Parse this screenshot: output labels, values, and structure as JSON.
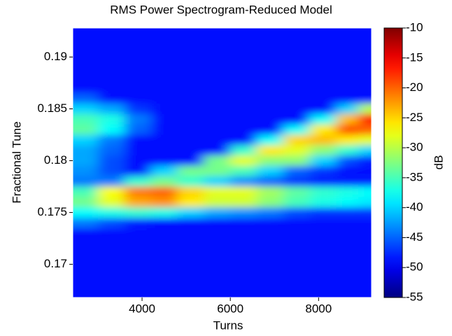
{
  "chart_data": {
    "type": "heatmap",
    "title": "RMS Power Spectrogram-Reduced Model",
    "x_label": "Turns",
    "y_label": "Fractional Tune",
    "colorbar_label": "dB",
    "colormap": "jet",
    "x": [
      2700,
      3300,
      3900,
      4500,
      5100,
      5700,
      6300,
      6900,
      7500,
      8100,
      8700,
      9100
    ],
    "y": [
      0.192,
      0.191,
      0.19,
      0.189,
      0.188,
      0.187,
      0.186,
      0.185,
      0.184,
      0.183,
      0.182,
      0.181,
      0.18,
      0.179,
      0.178,
      0.177,
      0.176,
      0.175,
      0.174,
      0.173,
      0.172,
      0.171,
      0.17,
      0.169,
      0.168
    ],
    "z": [
      [
        -49,
        -49,
        -49,
        -49,
        -49,
        -49,
        -49,
        -49,
        -49,
        -49,
        -49,
        -49
      ],
      [
        -49,
        -49,
        -49,
        -49,
        -49,
        -49,
        -49,
        -49,
        -49,
        -49,
        -49,
        -49
      ],
      [
        -49,
        -49,
        -49,
        -49,
        -49,
        -49,
        -49,
        -49,
        -49,
        -49,
        -49,
        -49
      ],
      [
        -49,
        -49,
        -49,
        -49,
        -49,
        -49,
        -49,
        -49,
        -49,
        -49,
        -49,
        -49
      ],
      [
        -49,
        -49,
        -49,
        -49,
        -49,
        -49,
        -49,
        -49,
        -49,
        -49,
        -49,
        -49
      ],
      [
        -49,
        -49,
        -49,
        -49,
        -49,
        -49,
        -49,
        -49,
        -49,
        -49,
        -49,
        -49
      ],
      [
        -45,
        -49,
        -49,
        -49,
        -49,
        -49,
        -49,
        -49,
        -49,
        -49,
        -49,
        -49
      ],
      [
        -40,
        -42,
        -47,
        -49,
        -49,
        -49,
        -49,
        -49,
        -49,
        -49,
        -40,
        -30
      ],
      [
        -35,
        -37,
        -44,
        -49,
        -49,
        -49,
        -49,
        -49,
        -49,
        -38,
        -24,
        -16
      ],
      [
        -34,
        -38,
        -45,
        -49,
        -49,
        -49,
        -49,
        -49,
        -38,
        -26,
        -19,
        -20
      ],
      [
        -40,
        -44,
        -49,
        -49,
        -49,
        -49,
        -49,
        -38,
        -25,
        -24,
        -26,
        -28
      ],
      [
        -42,
        -45,
        -49,
        -49,
        -49,
        -49,
        -36,
        -26,
        -28,
        -32,
        -36,
        -40
      ],
      [
        -42,
        -46,
        -49,
        -49,
        -49,
        -33,
        -28,
        -32,
        -32,
        -40,
        -46,
        -48
      ],
      [
        -43,
        -46,
        -49,
        -40,
        -33,
        -33,
        -35,
        -40,
        -45,
        -47,
        -49,
        -49
      ],
      [
        -44,
        -44,
        -36,
        -33,
        -36,
        -40,
        -43,
        -45,
        -47,
        -48,
        -48,
        -48
      ],
      [
        -35,
        -27,
        -21,
        -20,
        -25,
        -28,
        -28,
        -31,
        -34,
        -36,
        -37,
        -38
      ],
      [
        -33,
        -28,
        -23,
        -22,
        -26,
        -29,
        -29,
        -32,
        -35,
        -37,
        -38,
        -39
      ],
      [
        -38,
        -37,
        -36,
        -37,
        -40,
        -42,
        -43,
        -44,
        -46,
        -47,
        -47,
        -47
      ],
      [
        -44,
        -46,
        -48,
        -49,
        -49,
        -49,
        -49,
        -49,
        -49,
        -49,
        -49,
        -49
      ],
      [
        -49,
        -49,
        -49,
        -49,
        -49,
        -49,
        -49,
        -49,
        -49,
        -49,
        -49,
        -49
      ],
      [
        -49,
        -49,
        -49,
        -49,
        -49,
        -49,
        -49,
        -49,
        -49,
        -49,
        -49,
        -49
      ],
      [
        -49,
        -49,
        -49,
        -49,
        -49,
        -49,
        -49,
        -49,
        -49,
        -49,
        -49,
        -49
      ],
      [
        -49,
        -49,
        -49,
        -49,
        -49,
        -49,
        -49,
        -49,
        -49,
        -49,
        -49,
        -49
      ],
      [
        -49,
        -49,
        -49,
        -49,
        -49,
        -49,
        -49,
        -49,
        -49,
        -49,
        -49,
        -49
      ],
      [
        -49,
        -49,
        -49,
        -49,
        -49,
        -49,
        -49,
        -49,
        -49,
        -49,
        -49,
        -49
      ]
    ],
    "xlim": [
      2430,
      9200
    ],
    "ylim": [
      0.1668,
      0.1928
    ],
    "xticks": [
      4000,
      6000,
      8000
    ],
    "yticks": [
      0.17,
      0.175,
      0.18,
      0.185,
      0.19
    ],
    "clim": [
      -55,
      -10
    ],
    "cticks": [
      -55,
      -50,
      -45,
      -40,
      -35,
      -30,
      -25,
      -20,
      -15,
      -10
    ]
  }
}
